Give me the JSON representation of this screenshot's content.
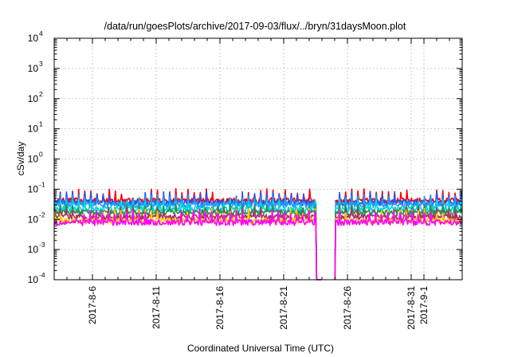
{
  "chart_data": {
    "type": "line",
    "title": "/data/run/goesPlots/archive/2017-09-03/flux/../bryn/31daysMoon.plot",
    "xlabel": "Coordinated Universal Time (UTC)",
    "ylabel": "cSv/day",
    "y_scale": "log",
    "ylim": [
      0.0001,
      10000
    ],
    "xlim": [
      "2017-08-03",
      "2017-09-04"
    ],
    "grid": true,
    "y_ticks": [
      {
        "value": 0.0001,
        "base": "10",
        "exp": "-4"
      },
      {
        "value": 0.001,
        "base": "10",
        "exp": "-3"
      },
      {
        "value": 0.01,
        "base": "10",
        "exp": "-2"
      },
      {
        "value": 0.1,
        "base": "10",
        "exp": "-1"
      },
      {
        "value": 1,
        "base": "10",
        "exp": "0"
      },
      {
        "value": 10,
        "base": "10",
        "exp": "1"
      },
      {
        "value": 100,
        "base": "10",
        "exp": "2"
      },
      {
        "value": 1000,
        "base": "10",
        "exp": "3"
      },
      {
        "value": 10000,
        "base": "10",
        "exp": "4"
      }
    ],
    "x_ticks": [
      {
        "date": "2017-08-06",
        "label": "2017-8-6"
      },
      {
        "date": "2017-08-11",
        "label": "2017-8-11"
      },
      {
        "date": "2017-08-16",
        "label": "2017-8-16"
      },
      {
        "date": "2017-08-21",
        "label": "2017-8-21"
      },
      {
        "date": "2017-08-26",
        "label": "2017-8-26"
      },
      {
        "date": "2017-08-31",
        "label": "2017-8-31"
      },
      {
        "date": "2017-09-01",
        "label": "2017-9-1"
      }
    ],
    "data_start": "2017-08-03",
    "data_end": "2017-09-04",
    "gap": {
      "start": "2017-08-24",
      "end": "2017-08-25"
    },
    "series": [
      {
        "color": "#ff0000",
        "level": 0.042,
        "spike": 0.09
      },
      {
        "color": "#2255ee",
        "level": 0.036,
        "spike": 0.075
      },
      {
        "color": "#1e9bff",
        "level": 0.031,
        "spike": 0.06
      },
      {
        "color": "#00d8d8",
        "level": 0.022,
        "spike": 0.04
      },
      {
        "color": "#2e8b57",
        "level": 0.017,
        "spike": 0.03
      },
      {
        "color": "#b03060",
        "level": 0.012,
        "spike": 0.022
      },
      {
        "color": "#ffcc00",
        "level": 0.009,
        "spike": 0.02
      },
      {
        "color": "#ff00ff",
        "level": 0.008,
        "spike": 0.018
      }
    ]
  }
}
